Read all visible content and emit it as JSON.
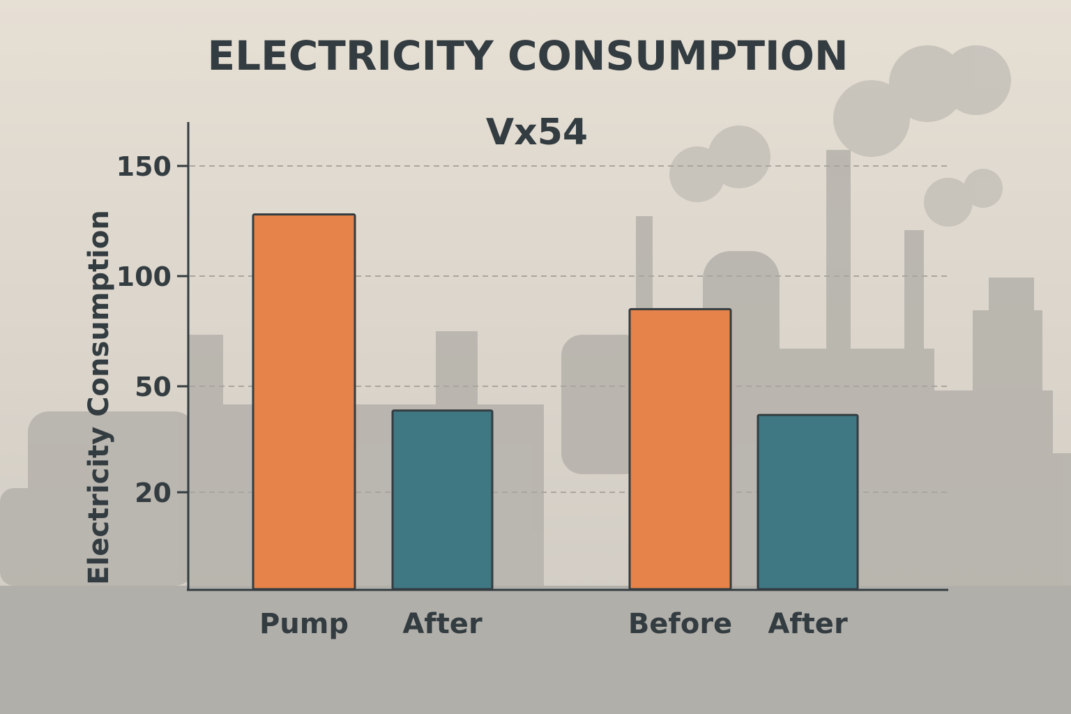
{
  "chart_data": {
    "type": "bar",
    "title": "ELECTRICITY CONSUMPTION",
    "subtitle": "Vx54",
    "xlabel": "",
    "ylabel": "Electricity Consumption",
    "categories": [
      "Pump",
      "After",
      "Before",
      "After"
    ],
    "values": [
      128,
      39,
      85,
      37
    ],
    "bar_colors": [
      "#e5834a",
      "#3f7783",
      "#e5834a",
      "#3f7783"
    ],
    "yticks": [
      20,
      50,
      100,
      150
    ],
    "ylim": [
      0,
      170
    ],
    "grid": true
  }
}
